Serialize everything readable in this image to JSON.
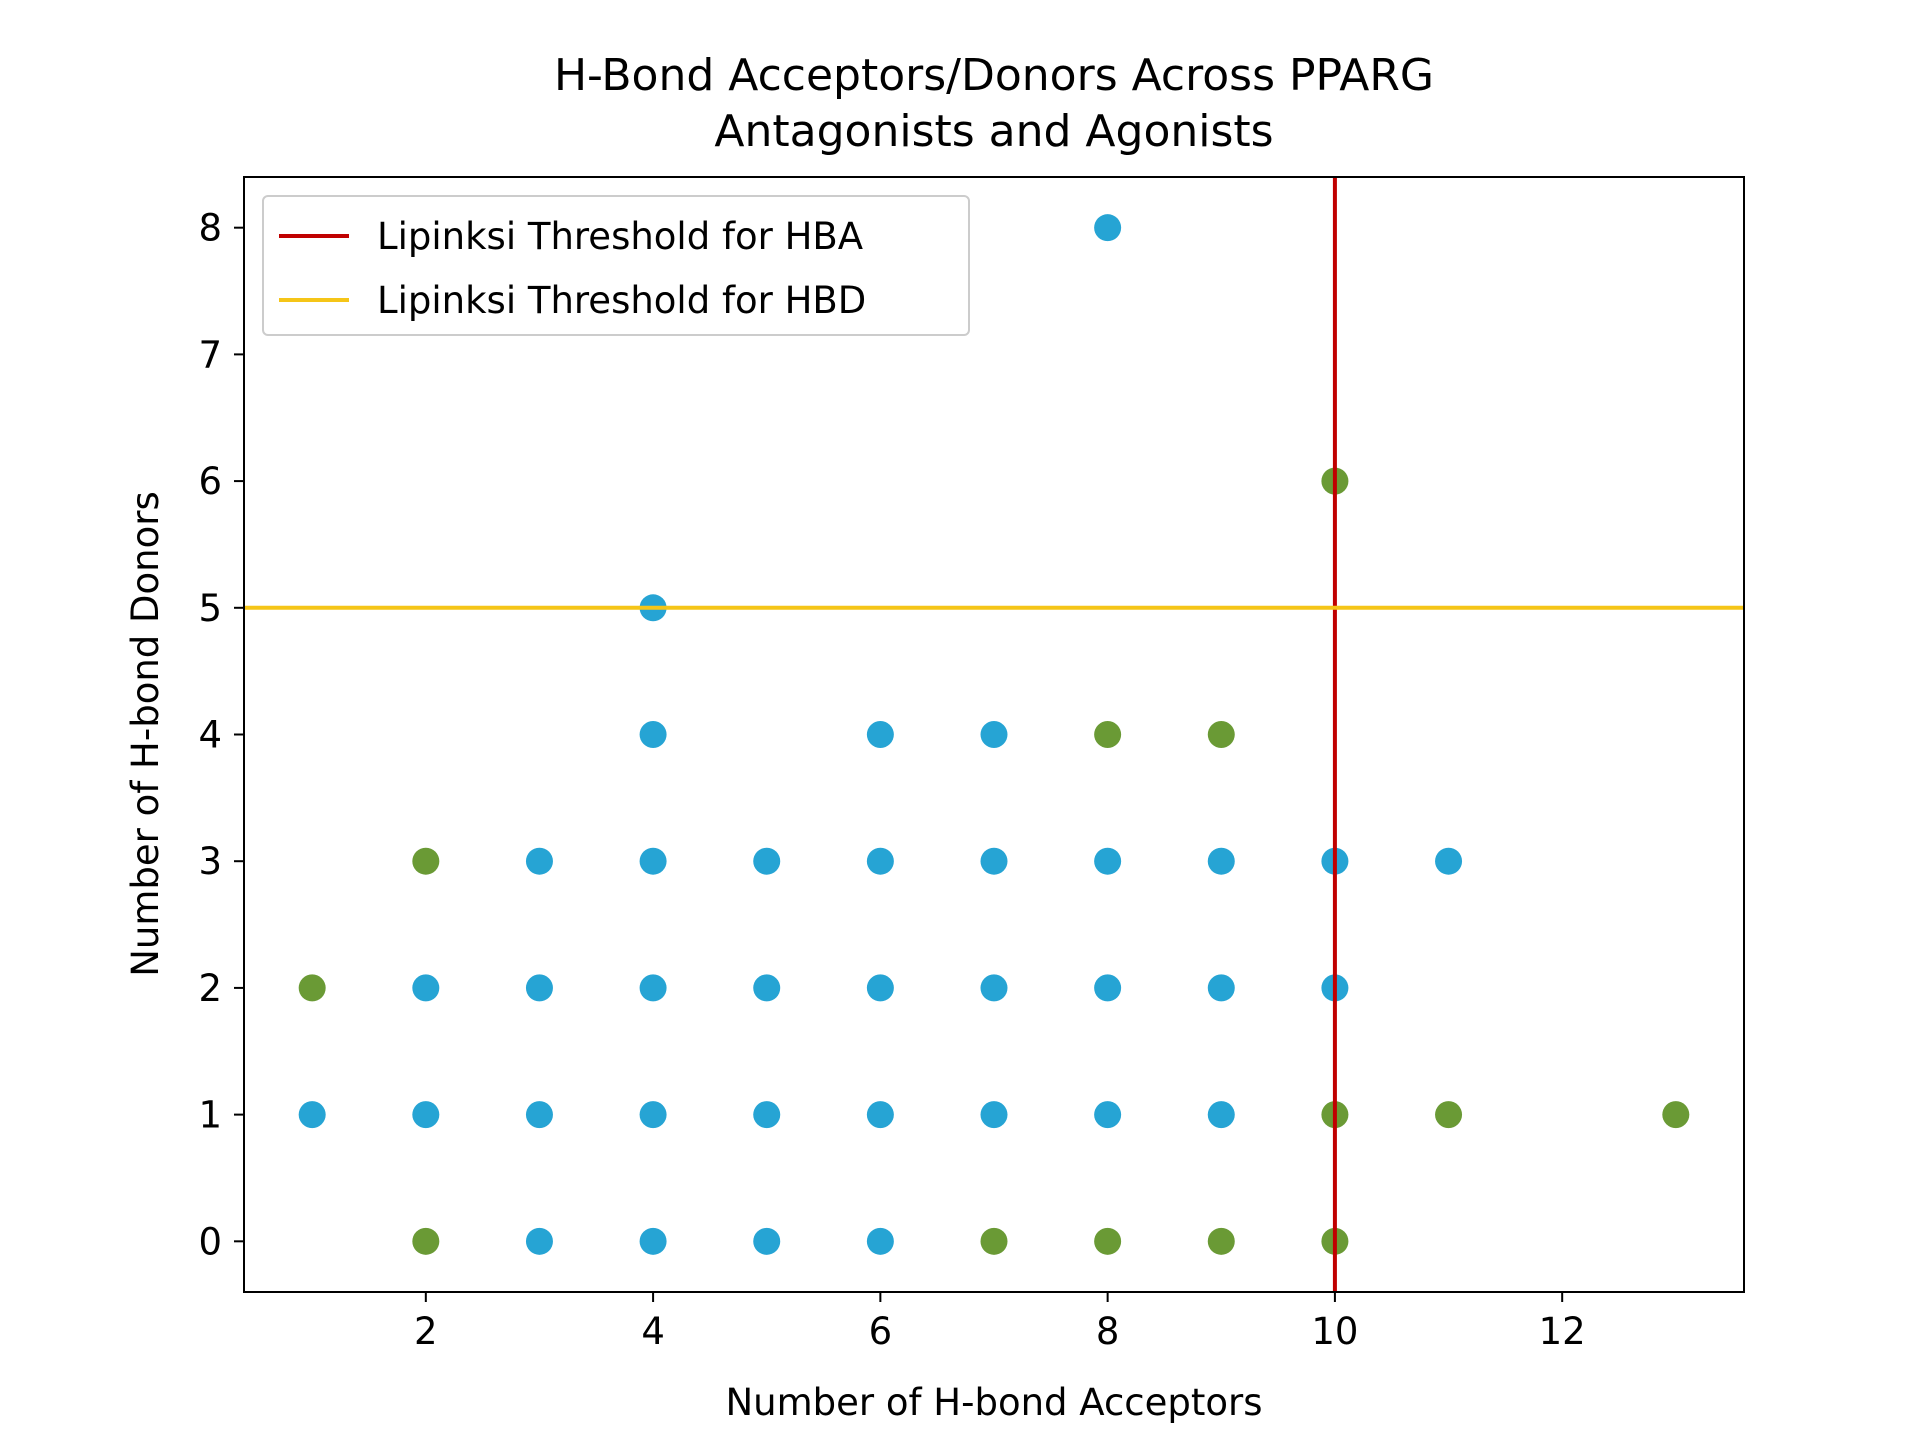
{
  "chart_data": {
    "type": "scatter",
    "title_lines": [
      "H-Bond Acceptors/Donors Across PPARG",
      "Antagonists and Agonists"
    ],
    "xlabel": "Number of H-bond Acceptors",
    "ylabel": "Number of H-bond Donors",
    "xlim": [
      0.4,
      13.6
    ],
    "ylim": [
      -0.4,
      8.4
    ],
    "xticks": [
      2,
      4,
      6,
      8,
      10,
      12
    ],
    "yticks": [
      0,
      1,
      2,
      3,
      4,
      5,
      6,
      7,
      8
    ],
    "grid": false,
    "legend_position": "upper-left",
    "legend": [
      {
        "label": "Lipinksi Threshold for HBA",
        "color": "#c00000"
      },
      {
        "label": "Lipinksi Threshold for HBD",
        "color": "#f5c518"
      }
    ],
    "reference_lines": [
      {
        "orientation": "vertical",
        "value": 10,
        "color": "#c00000"
      },
      {
        "orientation": "horizontal",
        "value": 5,
        "color": "#f5c518"
      }
    ],
    "series": [
      {
        "color": "#26a4d4",
        "points": [
          [
            1,
            1
          ],
          [
            2,
            1
          ],
          [
            2,
            2
          ],
          [
            3,
            0
          ],
          [
            3,
            1
          ],
          [
            3,
            2
          ],
          [
            3,
            3
          ],
          [
            4,
            0
          ],
          [
            4,
            1
          ],
          [
            4,
            2
          ],
          [
            4,
            3
          ],
          [
            4,
            4
          ],
          [
            4,
            5
          ],
          [
            5,
            0
          ],
          [
            5,
            1
          ],
          [
            5,
            2
          ],
          [
            5,
            3
          ],
          [
            6,
            0
          ],
          [
            6,
            1
          ],
          [
            6,
            2
          ],
          [
            6,
            3
          ],
          [
            6,
            4
          ],
          [
            7,
            1
          ],
          [
            7,
            2
          ],
          [
            7,
            3
          ],
          [
            7,
            4
          ],
          [
            8,
            1
          ],
          [
            8,
            2
          ],
          [
            8,
            3
          ],
          [
            8,
            8
          ],
          [
            9,
            1
          ],
          [
            9,
            2
          ],
          [
            9,
            3
          ],
          [
            10,
            2
          ],
          [
            10,
            3
          ],
          [
            11,
            3
          ]
        ]
      },
      {
        "color": "#6a9a35",
        "points": [
          [
            1,
            2
          ],
          [
            2,
            0
          ],
          [
            2,
            3
          ],
          [
            7,
            0
          ],
          [
            8,
            0
          ],
          [
            8,
            4
          ],
          [
            9,
            0
          ],
          [
            9,
            4
          ],
          [
            10,
            0
          ],
          [
            10,
            1
          ],
          [
            10,
            6
          ],
          [
            11,
            1
          ],
          [
            13,
            1
          ]
        ]
      }
    ]
  }
}
